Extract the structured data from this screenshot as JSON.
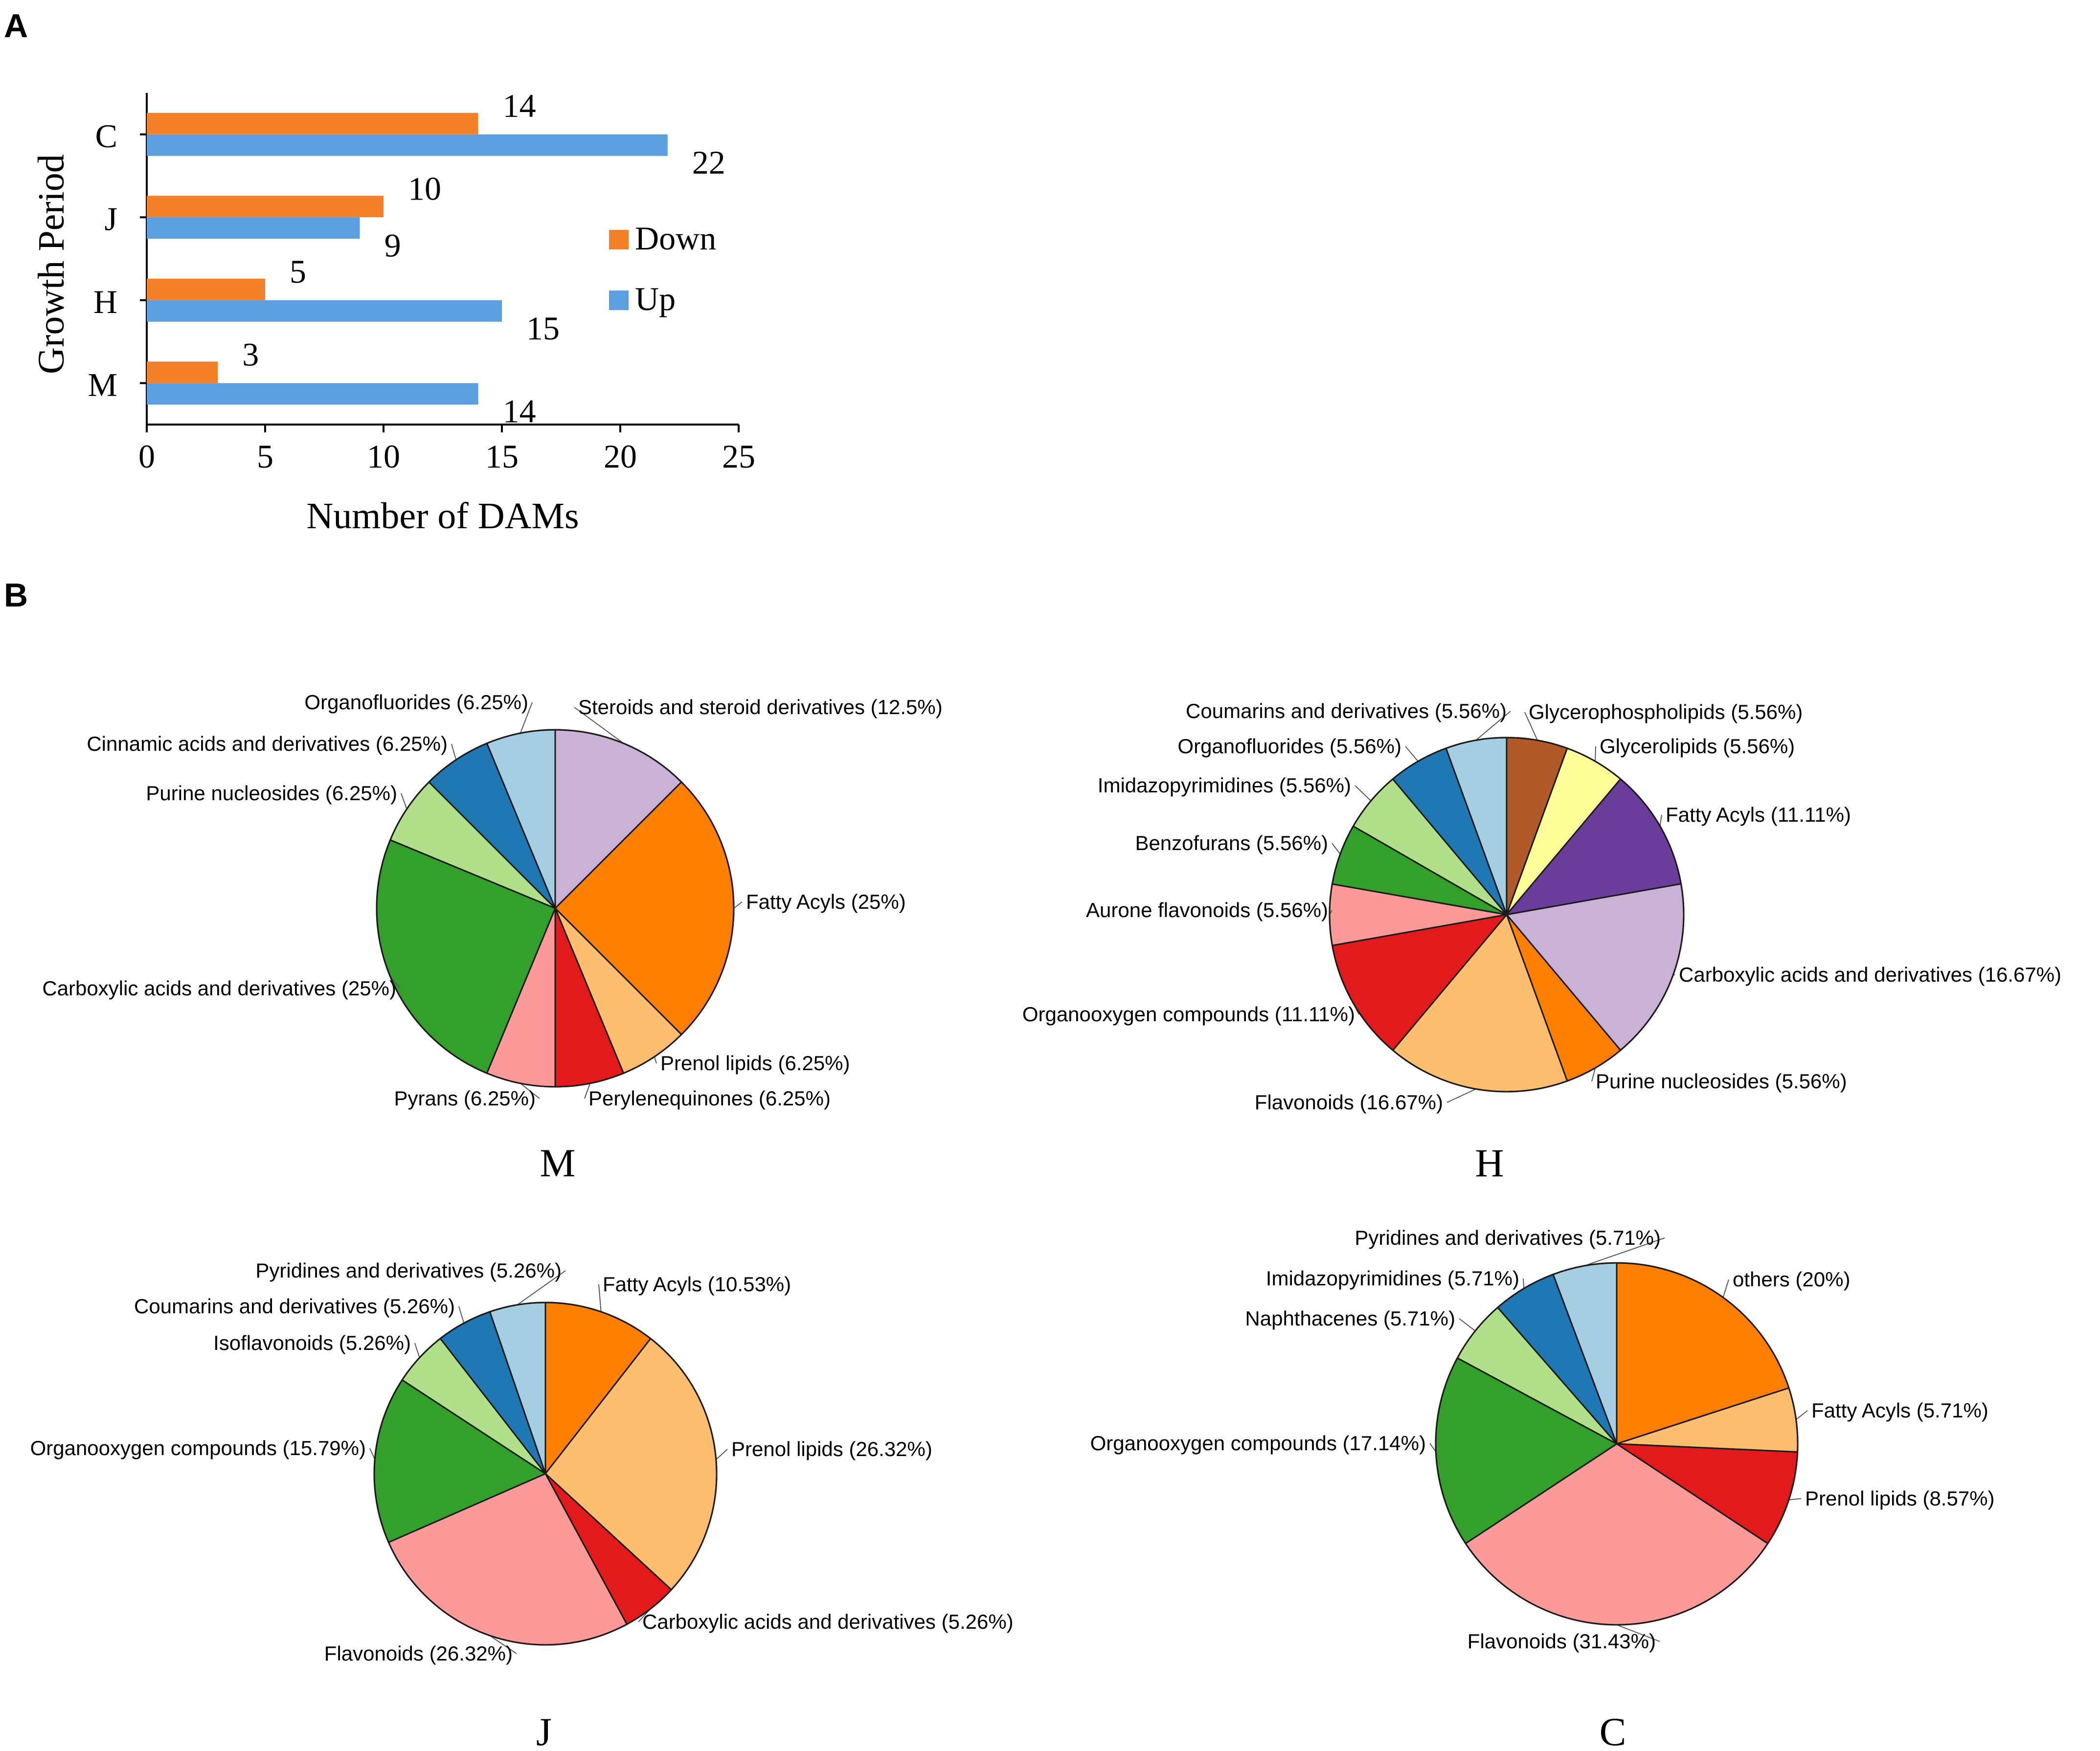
{
  "panels": {
    "a": "A",
    "b": "B"
  },
  "chart_data": [
    {
      "type": "bar",
      "orientation": "horizontal",
      "panel": "A",
      "categories": [
        "C",
        "J",
        "H",
        "M"
      ],
      "series": [
        {
          "name": "Down",
          "color": "#F4812A",
          "values": [
            14,
            10,
            5,
            3
          ]
        },
        {
          "name": "Up",
          "color": "#5B9FE0",
          "values": [
            22,
            9,
            15,
            14
          ]
        }
      ],
      "xlabel": "Number of DAMs",
      "ylabel": "Growth Period",
      "xlim": [
        0,
        25
      ],
      "xticks": [
        0,
        5,
        10,
        15,
        20,
        25
      ],
      "legend": "right"
    },
    {
      "type": "pie",
      "panel": "B",
      "title": "M",
      "slices": [
        {
          "label": "Steroids and steroid derivatives (12.5%)",
          "value": 12.5,
          "color": "#CAB2D6"
        },
        {
          "label": "Fatty Acyls (25%)",
          "value": 25,
          "color": "#FF7F00"
        },
        {
          "label": "Prenol lipids (6.25%)",
          "value": 6.25,
          "color": "#FDBF6F"
        },
        {
          "label": "Perylenequinones (6.25%)",
          "value": 6.25,
          "color": "#E31A1C"
        },
        {
          "label": "Pyrans (6.25%)",
          "value": 6.25,
          "color": "#FB9A99"
        },
        {
          "label": "Carboxylic acids and derivatives (25%)",
          "value": 25,
          "color": "#33A02C"
        },
        {
          "label": "Purine nucleosides (6.25%)",
          "value": 6.25,
          "color": "#B2DF8A"
        },
        {
          "label": "Cinnamic acids and derivatives (6.25%)",
          "value": 6.25,
          "color": "#1F78B4"
        },
        {
          "label": "Organofluorides (6.25%)",
          "value": 6.25,
          "color": "#A6CEE3"
        }
      ]
    },
    {
      "type": "pie",
      "panel": "B",
      "title": "H",
      "slices": [
        {
          "label": "Glycerophospholipids (5.56%)",
          "value": 5.56,
          "color": "#B15928"
        },
        {
          "label": "Glycerolipids (5.56%)",
          "value": 5.56,
          "color": "#FFFF99"
        },
        {
          "label": "Fatty Acyls (11.11%)",
          "value": 11.11,
          "color": "#6A3D9A"
        },
        {
          "label": "Carboxylic acids and derivatives (16.67%)",
          "value": 16.67,
          "color": "#CAB2D6"
        },
        {
          "label": "Purine nucleosides (5.56%)",
          "value": 5.56,
          "color": "#FF7F00"
        },
        {
          "label": "Flavonoids (16.67%)",
          "value": 16.67,
          "color": "#FDBF6F"
        },
        {
          "label": "Organooxygen compounds (11.11%)",
          "value": 11.11,
          "color": "#E31A1C"
        },
        {
          "label": "Aurone flavonoids (5.56%)",
          "value": 5.56,
          "color": "#FB9A99"
        },
        {
          "label": "Benzofurans (5.56%)",
          "value": 5.56,
          "color": "#33A02C"
        },
        {
          "label": "Imidazopyrimidines (5.56%)",
          "value": 5.56,
          "color": "#B2DF8A"
        },
        {
          "label": "Organofluorides (5.56%)",
          "value": 5.56,
          "color": "#1F78B4"
        },
        {
          "label": "Coumarins and derivatives (5.56%)",
          "value": 5.56,
          "color": "#A6CEE3"
        }
      ]
    },
    {
      "type": "pie",
      "panel": "B",
      "title": "J",
      "slices": [
        {
          "label": "Fatty Acyls (10.53%)",
          "value": 10.53,
          "color": "#FF7F00"
        },
        {
          "label": "Prenol lipids (26.32%)",
          "value": 26.32,
          "color": "#FDBF6F"
        },
        {
          "label": "Carboxylic acids and derivatives (5.26%)",
          "value": 5.26,
          "color": "#E31A1C"
        },
        {
          "label": "Flavonoids (26.32%)",
          "value": 26.32,
          "color": "#FB9A99"
        },
        {
          "label": "Organooxygen compounds (15.79%)",
          "value": 15.79,
          "color": "#33A02C"
        },
        {
          "label": "Isoflavonoids (5.26%)",
          "value": 5.26,
          "color": "#B2DF8A"
        },
        {
          "label": "Coumarins and derivatives (5.26%)",
          "value": 5.26,
          "color": "#1F78B4"
        },
        {
          "label": "Pyridines and derivatives (5.26%)",
          "value": 5.26,
          "color": "#A6CEE3"
        }
      ]
    },
    {
      "type": "pie",
      "panel": "B",
      "title": "C",
      "slices": [
        {
          "label": "others (20%)",
          "value": 20,
          "color": "#FF7F00"
        },
        {
          "label": "Fatty Acyls (5.71%)",
          "value": 5.71,
          "color": "#FDBF6F"
        },
        {
          "label": "Prenol lipids (8.57%)",
          "value": 8.57,
          "color": "#E31A1C"
        },
        {
          "label": "Flavonoids (31.43%)",
          "value": 31.43,
          "color": "#FB9A99"
        },
        {
          "label": "Organooxygen compounds (17.14%)",
          "value": 17.14,
          "color": "#33A02C"
        },
        {
          "label": "Naphthacenes (5.71%)",
          "value": 5.71,
          "color": "#B2DF8A"
        },
        {
          "label": "Imidazopyrimidines (5.71%)",
          "value": 5.71,
          "color": "#1F78B4"
        },
        {
          "label": "Pyridines and derivatives (5.71%)",
          "value": 5.71,
          "color": "#A6CEE3"
        }
      ]
    }
  ]
}
